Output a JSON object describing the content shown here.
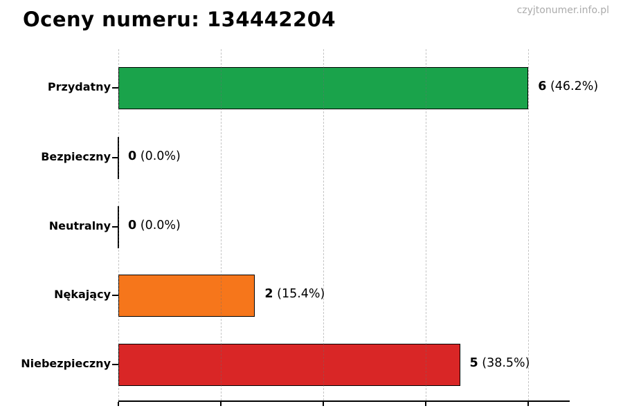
{
  "title": "Oceny numeru: 134442204",
  "watermark": "czyjtonumer.info.pl",
  "chart_data": {
    "type": "bar",
    "orientation": "horizontal",
    "title": "Oceny numeru: 134442204",
    "categories": [
      "Przydatny",
      "Bezpieczny",
      "Neutralny",
      "Nękający",
      "Niebezpieczny"
    ],
    "values": [
      6,
      0,
      0,
      2,
      5
    ],
    "percents": [
      "46.2%",
      "0.0%",
      "0.0%",
      "15.4%",
      "38.5%"
    ],
    "value_labels": [
      "6 (46.2%)",
      "0 (0.0%)",
      "0 (0.0%)",
      "2 (15.4%)",
      "5 (38.5%)"
    ],
    "bar_colors": [
      "#1aa34b",
      null,
      null,
      "#f6761b",
      "#d92626"
    ],
    "bar_edge_color": "#000000",
    "xlabel": "",
    "ylabel": "",
    "xlim": [
      0,
      6.6
    ],
    "xticks": [
      0,
      1.5,
      3,
      4.5,
      6
    ],
    "xtick_labels_visible": false,
    "grid": "vertical dashed",
    "legend": "none"
  },
  "colors": {
    "title": "#000000",
    "watermark": "#ababab",
    "axis": "#000000",
    "grid": "#c8c8c8"
  }
}
